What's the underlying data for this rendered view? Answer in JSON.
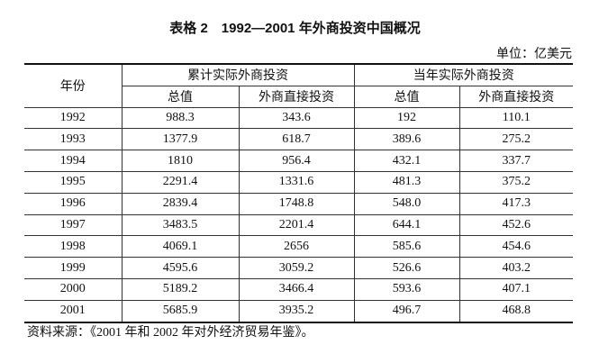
{
  "title": "表格 2　1992—2001 年外商投资中国概况",
  "unit": "单位：亿美元",
  "table": {
    "header": {
      "year": "年份",
      "groups": [
        "累计实际外商投资",
        "当年实际外商投资"
      ],
      "sub": [
        "总值",
        "外商直接投资",
        "总值",
        "外商直接投资"
      ]
    },
    "rows": [
      [
        "1992",
        "988.3",
        "343.6",
        "192",
        "110.1"
      ],
      [
        "1993",
        "1377.9",
        "618.7",
        "389.6",
        "275.2"
      ],
      [
        "1994",
        "1810",
        "956.4",
        "432.1",
        "337.7"
      ],
      [
        "1995",
        "2291.4",
        "1331.6",
        "481.3",
        "375.2"
      ],
      [
        "1996",
        "2839.4",
        "1748.8",
        "548.0",
        "417.3"
      ],
      [
        "1997",
        "3483.5",
        "2201.4",
        "644.1",
        "452.6"
      ],
      [
        "1998",
        "4069.1",
        "2656",
        "585.6",
        "454.6"
      ],
      [
        "1999",
        "4595.6",
        "3059.2",
        "526.6",
        "403.2"
      ],
      [
        "2000",
        "5189.2",
        "3466.4",
        "593.6",
        "407.1"
      ],
      [
        "2001",
        "5685.9",
        "3935.2",
        "496.7",
        "468.8"
      ]
    ]
  },
  "source": "资料来源：《2001 年和 2002 年对外经济贸易年鉴》。"
}
